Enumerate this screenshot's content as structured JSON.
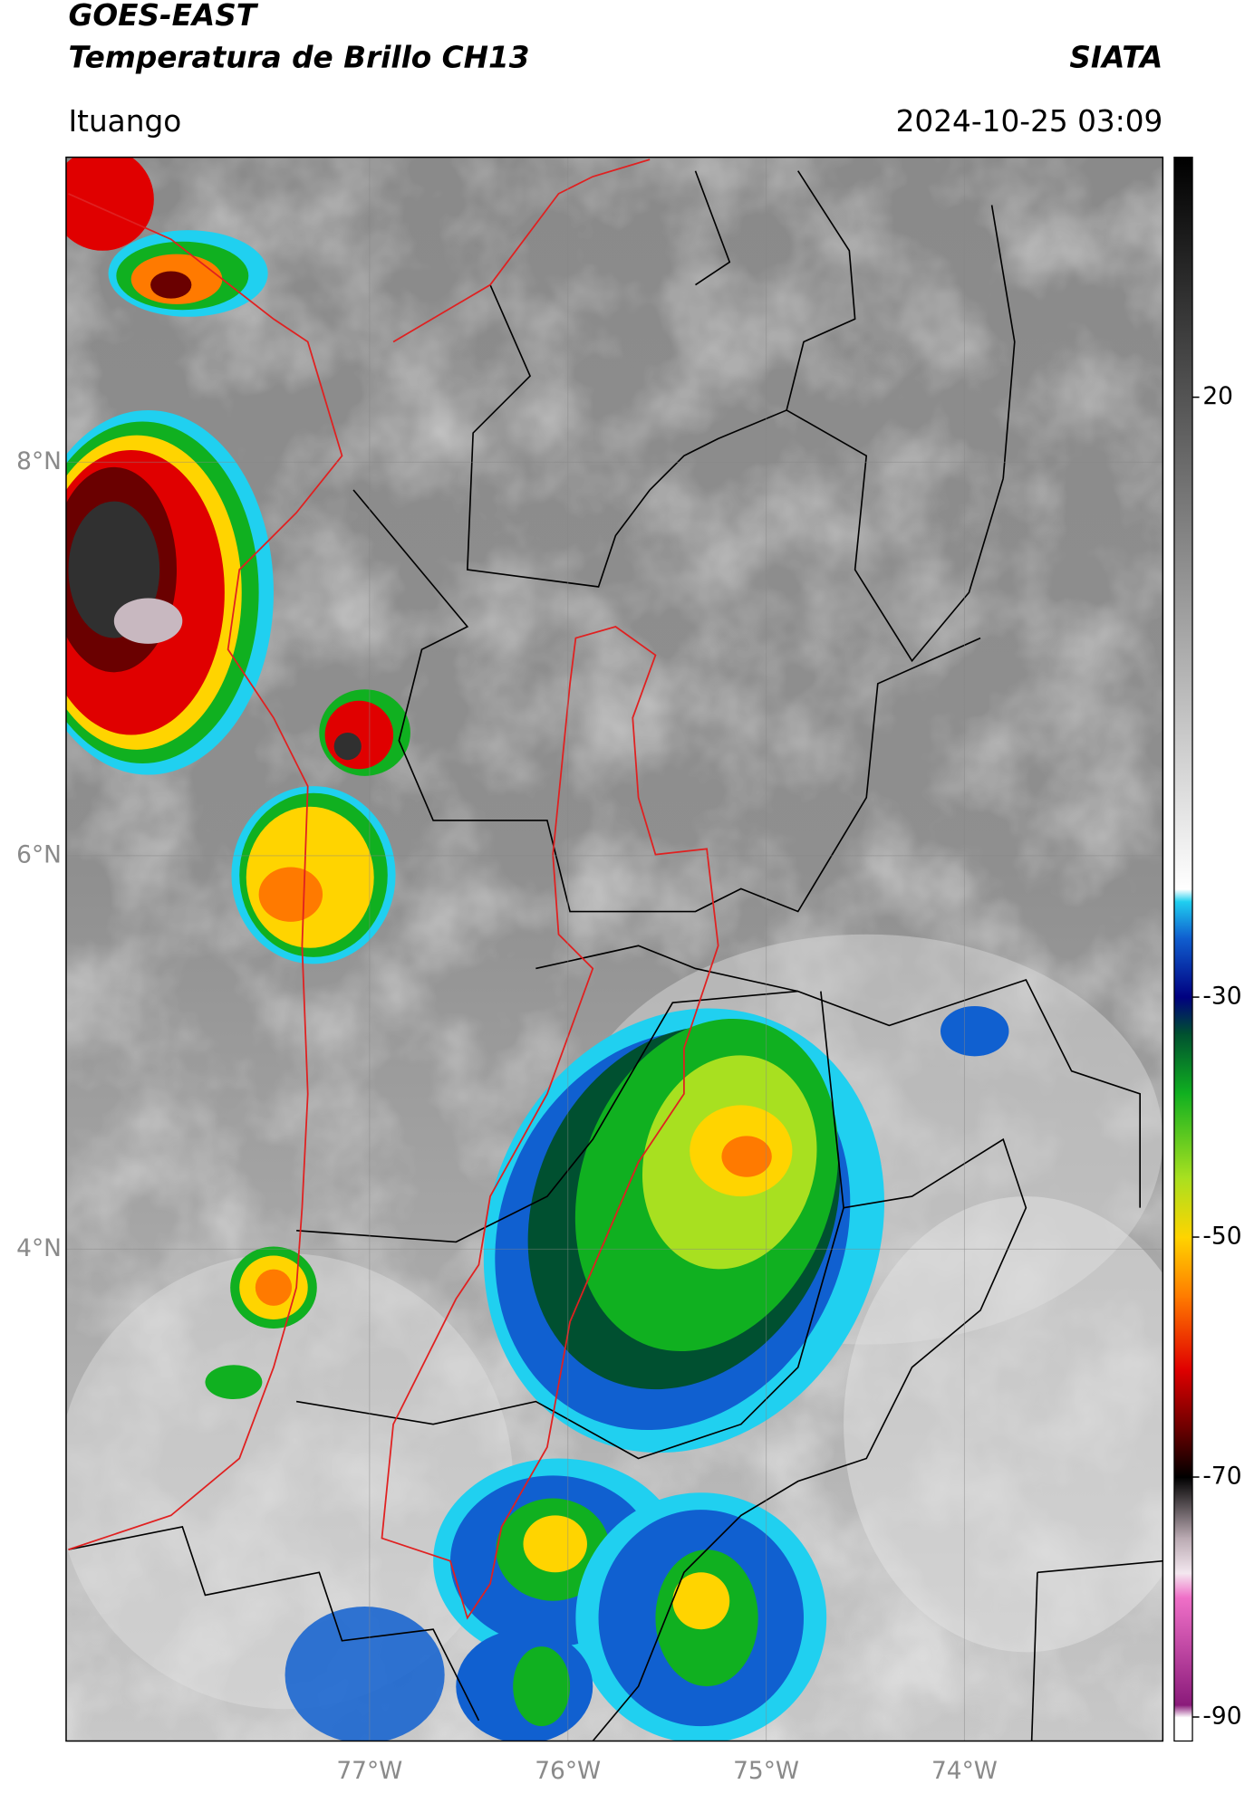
{
  "header": {
    "title": "GOES-EAST",
    "subtitle": "Temperatura de Brillo CH13",
    "source": "SIATA",
    "location": "Ituango",
    "datetime": "2024-10-25 03:09"
  },
  "map": {
    "xlim": [
      -78.53,
      -73.0
    ],
    "ylim": [
      1.5,
      9.55
    ],
    "xticks": [
      {
        "value": -77,
        "label": "77°W"
      },
      {
        "value": -76,
        "label": "76°W"
      },
      {
        "value": -75,
        "label": "75°W"
      },
      {
        "value": -74,
        "label": "74°W"
      }
    ],
    "yticks": [
      {
        "value": 8,
        "label": "8°N"
      },
      {
        "value": 6,
        "label": "6°N"
      },
      {
        "value": 4,
        "label": "4°N"
      }
    ],
    "grid": true
  },
  "colorbar": {
    "clim": [
      -92,
      40
    ],
    "ticks": [
      20,
      -30,
      -50,
      -70,
      -90
    ],
    "colormap": [
      {
        "value": -92,
        "color": "#ffffff"
      },
      {
        "value": -90,
        "color": "#ffffff"
      },
      {
        "value": -89,
        "color": "#8a1a7a"
      },
      {
        "value": -80,
        "color": "#f070c8"
      },
      {
        "value": -78,
        "color": "#f4e8f0"
      },
      {
        "value": -75,
        "color": "#b8a8b0"
      },
      {
        "value": -70,
        "color": "#000000"
      },
      {
        "value": -66,
        "color": "#6a0000"
      },
      {
        "value": -61,
        "color": "#e00000"
      },
      {
        "value": -55,
        "color": "#ff7a00"
      },
      {
        "value": -50,
        "color": "#ffd400"
      },
      {
        "value": -45,
        "color": "#a8e020"
      },
      {
        "value": -38,
        "color": "#10b020"
      },
      {
        "value": -33,
        "color": "#005030"
      },
      {
        "value": -30,
        "color": "#000080"
      },
      {
        "value": -25,
        "color": "#1060d0"
      },
      {
        "value": -22,
        "color": "#20d0f0"
      },
      {
        "value": -21,
        "color": "#ffffff"
      },
      {
        "value": 40,
        "color": "#000000"
      }
    ]
  }
}
